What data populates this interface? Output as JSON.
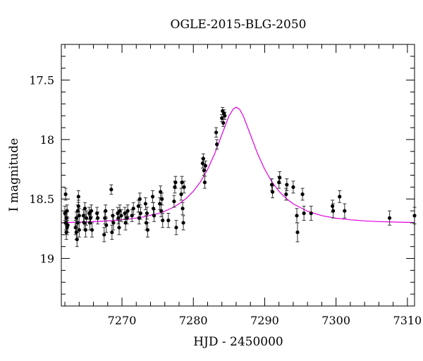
{
  "chart_data": {
    "type": "scatter",
    "title": "OGLE-2015-BLG-2050",
    "xlabel": "HJD - 2450000",
    "ylabel": "I magnitude",
    "xlim": [
      7261.5,
      7311.0
    ],
    "ylim": [
      19.4,
      17.2
    ],
    "y_inverted": true,
    "x_major_ticks": [
      7270,
      7280,
      7290,
      7300,
      7310
    ],
    "y_major_ticks": [
      17.5,
      18,
      18.5,
      19
    ],
    "x_tick_labels": [
      "7270",
      "7280",
      "7290",
      "7300",
      "7310"
    ],
    "y_tick_labels": [
      "17.5",
      "18",
      "18.5",
      "19"
    ],
    "grid": false,
    "model_color": "#e000e0",
    "points": [
      [
        7262.0,
        18.62,
        0.06
      ],
      [
        7262.1,
        18.46,
        0.05
      ],
      [
        7262.1,
        18.7,
        0.06
      ],
      [
        7262.2,
        18.66,
        0.06
      ],
      [
        7262.2,
        18.78,
        0.06
      ],
      [
        7262.3,
        18.6,
        0.05
      ],
      [
        7262.3,
        18.74,
        0.06
      ],
      [
        7262.4,
        18.72,
        0.06
      ],
      [
        7263.5,
        18.74,
        0.06
      ],
      [
        7263.6,
        18.66,
        0.05
      ],
      [
        7263.6,
        18.78,
        0.06
      ],
      [
        7263.7,
        18.84,
        0.06
      ],
      [
        7263.8,
        18.6,
        0.05
      ],
      [
        7263.8,
        18.7,
        0.06
      ],
      [
        7263.9,
        18.56,
        0.05
      ],
      [
        7263.9,
        18.48,
        0.05
      ],
      [
        7264.0,
        18.76,
        0.06
      ],
      [
        7264.0,
        18.64,
        0.06
      ],
      [
        7264.6,
        18.64,
        0.05
      ],
      [
        7264.7,
        18.7,
        0.06
      ],
      [
        7264.8,
        18.58,
        0.05
      ],
      [
        7264.9,
        18.76,
        0.06
      ],
      [
        7265.0,
        18.66,
        0.06
      ],
      [
        7265.4,
        18.62,
        0.05
      ],
      [
        7265.5,
        18.7,
        0.06
      ],
      [
        7265.6,
        18.66,
        0.05
      ],
      [
        7265.7,
        18.6,
        0.05
      ],
      [
        7265.8,
        18.76,
        0.06
      ],
      [
        7266.5,
        18.62,
        0.05
      ],
      [
        7266.6,
        18.66,
        0.05
      ],
      [
        7267.5,
        18.8,
        0.06
      ],
      [
        7267.6,
        18.66,
        0.05
      ],
      [
        7267.7,
        18.6,
        0.05
      ],
      [
        7267.8,
        18.72,
        0.06
      ],
      [
        7268.5,
        18.42,
        0.04
      ],
      [
        7268.6,
        18.78,
        0.06
      ],
      [
        7268.7,
        18.64,
        0.05
      ],
      [
        7268.8,
        18.7,
        0.06
      ],
      [
        7269.4,
        18.62,
        0.05
      ],
      [
        7269.5,
        18.66,
        0.05
      ],
      [
        7269.6,
        18.74,
        0.06
      ],
      [
        7269.7,
        18.6,
        0.05
      ],
      [
        7269.9,
        18.64,
        0.05
      ],
      [
        7270.4,
        18.62,
        0.05
      ],
      [
        7270.5,
        18.7,
        0.06
      ],
      [
        7270.7,
        18.66,
        0.05
      ],
      [
        7270.8,
        18.6,
        0.05
      ],
      [
        7271.4,
        18.64,
        0.05
      ],
      [
        7271.6,
        18.58,
        0.05
      ],
      [
        7272.3,
        18.56,
        0.05
      ],
      [
        7272.4,
        18.66,
        0.05
      ],
      [
        7272.5,
        18.5,
        0.05
      ],
      [
        7272.6,
        18.62,
        0.05
      ],
      [
        7273.3,
        18.54,
        0.05
      ],
      [
        7273.4,
        18.7,
        0.06
      ],
      [
        7273.5,
        18.62,
        0.05
      ],
      [
        7273.6,
        18.76,
        0.06
      ],
      [
        7274.3,
        18.48,
        0.05
      ],
      [
        7274.4,
        18.58,
        0.05
      ],
      [
        7274.5,
        18.64,
        0.05
      ],
      [
        7275.3,
        18.54,
        0.05
      ],
      [
        7275.4,
        18.44,
        0.05
      ],
      [
        7275.5,
        18.6,
        0.05
      ],
      [
        7275.6,
        18.5,
        0.05
      ],
      [
        7275.7,
        18.68,
        0.06
      ],
      [
        7276.5,
        18.68,
        0.06
      ],
      [
        7277.3,
        18.52,
        0.05
      ],
      [
        7277.4,
        18.4,
        0.05
      ],
      [
        7277.5,
        18.36,
        0.05
      ],
      [
        7277.6,
        18.74,
        0.06
      ],
      [
        7278.3,
        18.46,
        0.05
      ],
      [
        7278.4,
        18.36,
        0.05
      ],
      [
        7278.5,
        18.58,
        0.05
      ],
      [
        7278.6,
        18.7,
        0.06
      ],
      [
        7278.7,
        18.4,
        0.05
      ],
      [
        7281.3,
        18.2,
        0.04
      ],
      [
        7281.4,
        18.16,
        0.04
      ],
      [
        7281.5,
        18.26,
        0.04
      ],
      [
        7281.6,
        18.36,
        0.05
      ],
      [
        7281.7,
        18.22,
        0.04
      ],
      [
        7283.2,
        17.94,
        0.04
      ],
      [
        7283.3,
        18.04,
        0.04
      ],
      [
        7284.0,
        17.82,
        0.03
      ],
      [
        7284.1,
        17.76,
        0.03
      ],
      [
        7284.2,
        17.86,
        0.03
      ],
      [
        7284.3,
        17.78,
        0.03
      ],
      [
        7284.4,
        17.8,
        0.03
      ],
      [
        7291.0,
        18.38,
        0.05
      ],
      [
        7291.1,
        18.44,
        0.05
      ],
      [
        7292.0,
        18.36,
        0.05
      ],
      [
        7292.1,
        18.32,
        0.05
      ],
      [
        7293.0,
        18.46,
        0.05
      ],
      [
        7293.1,
        18.38,
        0.05
      ],
      [
        7294.0,
        18.4,
        0.05
      ],
      [
        7294.5,
        18.64,
        0.06
      ],
      [
        7294.6,
        18.78,
        0.08
      ],
      [
        7295.3,
        18.46,
        0.05
      ],
      [
        7295.5,
        18.62,
        0.06
      ],
      [
        7296.5,
        18.62,
        0.06
      ],
      [
        7299.5,
        18.56,
        0.05
      ],
      [
        7299.6,
        18.6,
        0.06
      ],
      [
        7300.5,
        18.48,
        0.05
      ],
      [
        7301.2,
        18.6,
        0.06
      ],
      [
        7307.5,
        18.66,
        0.06
      ],
      [
        7311.0,
        18.64,
        0.07
      ]
    ],
    "model": [
      [
        7261.5,
        18.7
      ],
      [
        7263,
        18.697
      ],
      [
        7265,
        18.693
      ],
      [
        7267,
        18.688
      ],
      [
        7269,
        18.68
      ],
      [
        7271,
        18.669
      ],
      [
        7273,
        18.651
      ],
      [
        7275,
        18.624
      ],
      [
        7276,
        18.603
      ],
      [
        7277,
        18.576
      ],
      [
        7278,
        18.541
      ],
      [
        7279,
        18.495
      ],
      [
        7280,
        18.435
      ],
      [
        7281,
        18.355
      ],
      [
        7282,
        18.251
      ],
      [
        7283,
        18.118
      ],
      [
        7284,
        17.959
      ],
      [
        7285,
        17.801
      ],
      [
        7285.6,
        17.743
      ],
      [
        7286,
        17.728
      ],
      [
        7286.5,
        17.747
      ],
      [
        7287,
        17.802
      ],
      [
        7288,
        17.959
      ],
      [
        7289,
        18.118
      ],
      [
        7290,
        18.251
      ],
      [
        7291,
        18.355
      ],
      [
        7292,
        18.435
      ],
      [
        7293,
        18.495
      ],
      [
        7294,
        18.541
      ],
      [
        7296,
        18.603
      ],
      [
        7298,
        18.64
      ],
      [
        7300,
        18.662
      ],
      [
        7302,
        18.675
      ],
      [
        7304,
        18.684
      ],
      [
        7306,
        18.69
      ],
      [
        7308,
        18.694
      ],
      [
        7311,
        18.698
      ]
    ]
  }
}
